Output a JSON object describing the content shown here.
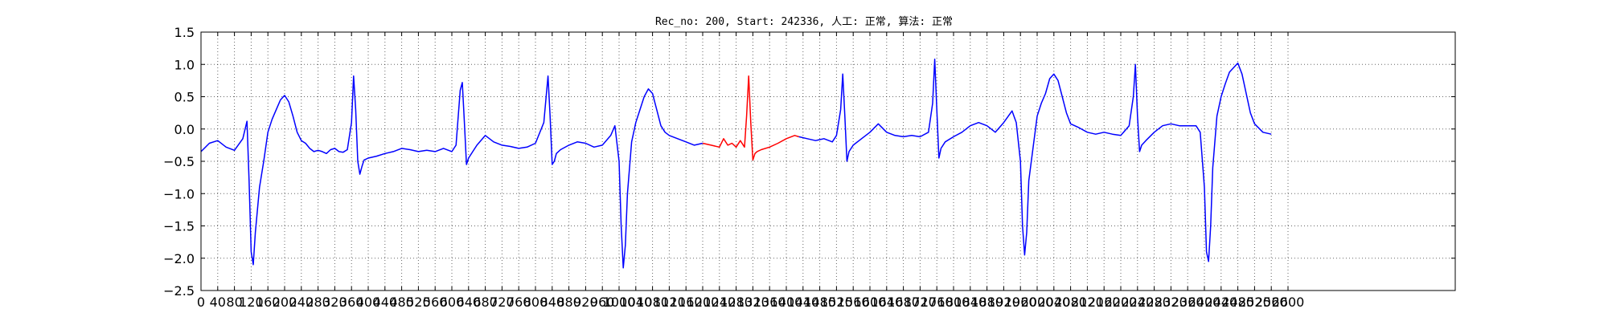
{
  "chart_data": {
    "type": "line",
    "title": "Rec_no: 200, Start: 242336, 人工: 正常, 算法: 正常",
    "xlabel": "",
    "ylabel": "",
    "xlim": [
      0,
      3000
    ],
    "ylim": [
      -2.5,
      1.5
    ],
    "grid": true,
    "x_ticks": [
      0,
      40,
      80,
      120,
      160,
      200,
      240,
      280,
      320,
      360,
      400,
      440,
      480,
      520,
      560,
      600,
      640,
      680,
      720,
      760,
      800,
      840,
      880,
      920,
      960,
      1000,
      1040,
      1080,
      1120,
      1160,
      1200,
      1240,
      1280,
      1320,
      1360,
      1400,
      1440,
      1480,
      1520,
      1560,
      1600,
      1640,
      1680,
      1720,
      1760,
      1800,
      1840,
      1880,
      1920,
      1960,
      2000,
      2040,
      2080,
      2120,
      2160,
      2200,
      2240,
      2280,
      2320,
      2360,
      2400,
      2440,
      2480,
      2520,
      2560,
      2600
    ],
    "x_tick_labels": [
      "0",
      "40",
      "80",
      "120",
      "160",
      "200",
      "240",
      "280",
      "320",
      "360",
      "400",
      "440",
      "480",
      "520",
      "560",
      "600",
      "640",
      "680",
      "720",
      "760",
      "800",
      "840",
      "880",
      "920",
      "960",
      "1000",
      "1040",
      "1080",
      "1120",
      "1160",
      "1200",
      "1240",
      "1280",
      "1320",
      "1360",
      "1400",
      "1440",
      "1480",
      "1520",
      "1560",
      "1600",
      "1640",
      "1680",
      "1720",
      "1760",
      "1800",
      "1840",
      "1880",
      "1920",
      "1960",
      "2000",
      "2040",
      "2080",
      "2120",
      "2160",
      "2200",
      "2240",
      "2280",
      "2320",
      "2360",
      "2400",
      "2440",
      "2480",
      "2520",
      "2560",
      "2600"
    ],
    "y_ticks": [
      1.5,
      1.0,
      0.5,
      0.0,
      -0.5,
      -1.0,
      -1.5,
      -2.0,
      -2.5
    ],
    "y_tick_labels": [
      "1.5",
      "1.0",
      "0.5",
      "0.0",
      "−0.5",
      "−1.0",
      "−1.5",
      "−2.0",
      "−2.5"
    ],
    "series": [
      {
        "color": "#0000ff",
        "x": [
          0,
          20,
          40,
          60,
          80,
          100,
          110,
          115,
          120,
          125,
          130,
          140,
          150,
          160,
          170,
          180,
          190,
          200,
          210,
          220,
          230,
          240,
          250,
          260,
          270,
          280,
          290,
          300,
          310,
          320,
          330,
          340,
          350,
          360,
          365,
          370,
          375,
          380,
          385,
          390,
          400,
          420,
          440,
          460,
          480,
          500,
          520,
          540,
          560,
          580,
          600,
          610,
          620,
          625,
          630,
          635,
          640,
          650,
          660,
          680,
          700,
          720,
          740,
          760,
          780,
          800,
          820,
          830,
          835,
          840,
          845,
          850,
          860,
          880,
          900,
          920,
          940,
          960,
          980,
          990,
          1000,
          1005,
          1010,
          1015,
          1020,
          1030,
          1040,
          1050,
          1060,
          1070,
          1080,
          1090,
          1100,
          1110,
          1120,
          1140,
          1160,
          1180,
          1200
        ],
        "y": [
          -0.35,
          -0.22,
          -0.18,
          -0.28,
          -0.33,
          -0.15,
          0.12,
          -0.8,
          -1.9,
          -2.1,
          -1.6,
          -0.9,
          -0.5,
          -0.05,
          0.15,
          0.3,
          0.45,
          0.52,
          0.42,
          0.2,
          -0.05,
          -0.18,
          -0.22,
          -0.3,
          -0.35,
          -0.33,
          -0.35,
          -0.38,
          -0.32,
          -0.3,
          -0.35,
          -0.36,
          -0.32,
          0.1,
          0.82,
          0.3,
          -0.5,
          -0.7,
          -0.58,
          -0.48,
          -0.45,
          -0.42,
          -0.38,
          -0.35,
          -0.3,
          -0.32,
          -0.35,
          -0.33,
          -0.35,
          -0.3,
          -0.35,
          -0.25,
          0.6,
          0.72,
          0.1,
          -0.55,
          -0.45,
          -0.35,
          -0.25,
          -0.1,
          -0.2,
          -0.25,
          -0.27,
          -0.3,
          -0.28,
          -0.22,
          0.1,
          0.82,
          0.2,
          -0.55,
          -0.5,
          -0.38,
          -0.32,
          -0.25,
          -0.2,
          -0.22,
          -0.28,
          -0.25,
          -0.1,
          0.05,
          -0.5,
          -1.5,
          -2.15,
          -1.8,
          -1.0,
          -0.2,
          0.1,
          0.3,
          0.5,
          0.62,
          0.55,
          0.3,
          0.05,
          -0.05,
          -0.1,
          -0.15,
          -0.2,
          -0.25,
          -0.22
        ]
      },
      {
        "color": "#ff0000",
        "x": [
          1200,
          1220,
          1240,
          1250,
          1260,
          1270,
          1280,
          1290,
          1300,
          1305,
          1310,
          1315,
          1320,
          1325,
          1330,
          1340,
          1360,
          1380,
          1400,
          1420,
          1430
        ],
        "y": [
          -0.22,
          -0.25,
          -0.28,
          -0.15,
          -0.25,
          -0.22,
          -0.28,
          -0.18,
          -0.28,
          0.2,
          0.82,
          0.1,
          -0.48,
          -0.38,
          -0.35,
          -0.32,
          -0.28,
          -0.22,
          -0.15,
          -0.1,
          -0.12
        ]
      },
      {
        "color": "#0000ff",
        "x": [
          1430,
          1450,
          1470,
          1490,
          1510,
          1520,
          1530,
          1535,
          1540,
          1545,
          1550,
          1560,
          1580,
          1600,
          1620,
          1640,
          1660,
          1680,
          1700,
          1720,
          1740,
          1750,
          1755,
          1760,
          1765,
          1770,
          1780,
          1800,
          1820,
          1840,
          1860,
          1880,
          1900,
          1920,
          1940,
          1950,
          1960,
          1965,
          1970,
          1975,
          1980,
          1990,
          2000,
          2010,
          2020,
          2030,
          2040,
          2050,
          2060,
          2070,
          2080,
          2100,
          2120,
          2140,
          2160,
          2180,
          2200,
          2220,
          2230,
          2235,
          2240,
          2245,
          2250,
          2260,
          2280,
          2300,
          2320,
          2340,
          2360,
          2380,
          2390,
          2400,
          2405,
          2410,
          2415,
          2420,
          2430,
          2440,
          2450,
          2460,
          2470,
          2480,
          2490,
          2500,
          2510,
          2520,
          2540,
          2560
        ],
        "y": [
          -0.12,
          -0.15,
          -0.18,
          -0.15,
          -0.2,
          -0.1,
          0.3,
          0.85,
          0.2,
          -0.5,
          -0.35,
          -0.25,
          -0.15,
          -0.05,
          0.08,
          -0.05,
          -0.1,
          -0.12,
          -0.1,
          -0.12,
          -0.05,
          0.4,
          1.08,
          0.3,
          -0.45,
          -0.3,
          -0.2,
          -0.12,
          -0.05,
          0.05,
          0.1,
          0.05,
          -0.05,
          0.1,
          0.28,
          0.1,
          -0.5,
          -1.5,
          -1.95,
          -1.6,
          -0.8,
          -0.3,
          0.2,
          0.4,
          0.55,
          0.78,
          0.85,
          0.75,
          0.5,
          0.25,
          0.08,
          0.02,
          -0.05,
          -0.08,
          -0.05,
          -0.08,
          -0.1,
          0.05,
          0.5,
          1.0,
          0.2,
          -0.35,
          -0.25,
          -0.18,
          -0.05,
          0.05,
          0.08,
          0.05,
          0.05,
          0.05,
          -0.05,
          -0.9,
          -1.9,
          -2.05,
          -1.5,
          -0.6,
          0.2,
          0.5,
          0.7,
          0.88,
          0.95,
          1.02,
          0.85,
          0.55,
          0.25,
          0.08,
          -0.05,
          -0.08
        ]
      }
    ]
  }
}
